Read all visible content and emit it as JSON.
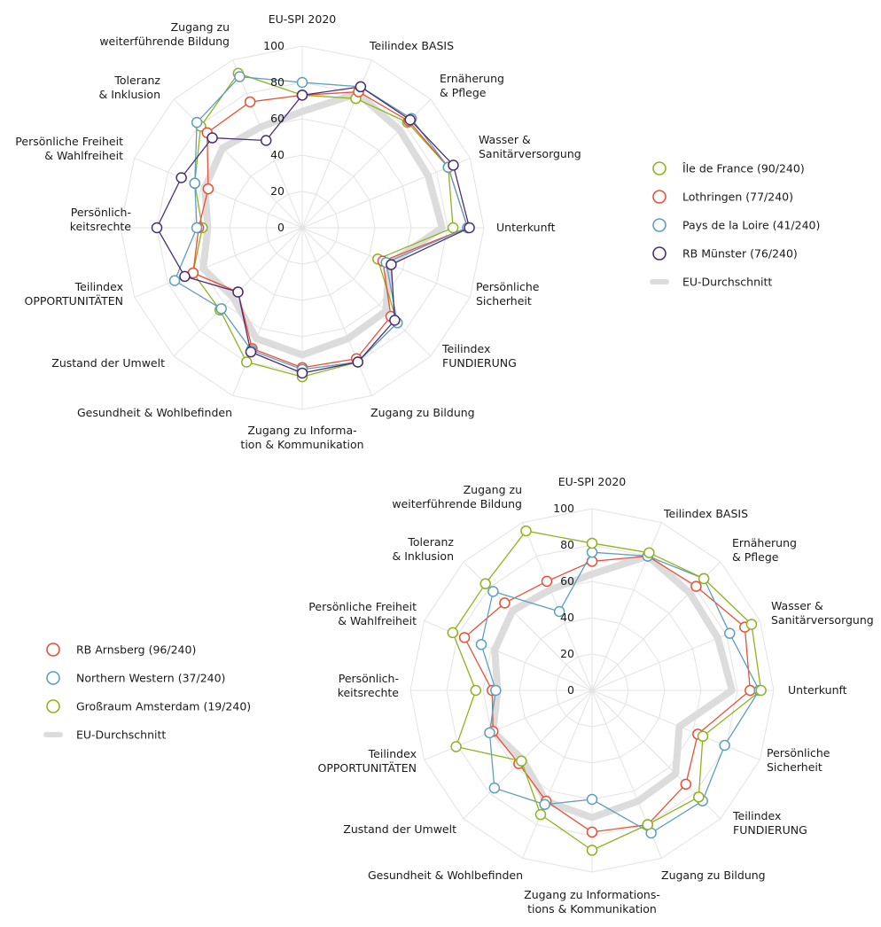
{
  "chart_data": [
    {
      "type": "radar",
      "title": "EU-SPI 2020",
      "rlim": [
        0,
        100
      ],
      "ticks": [
        "0",
        "20",
        "40",
        "60",
        "80",
        "100"
      ],
      "tick_values": [
        0,
        20,
        40,
        60,
        80,
        100
      ],
      "grid": true,
      "legend_position": "right",
      "axes": [
        "Teilindex BASIS",
        "Ernäherung & Pflege",
        "Wasser & Sanitärversorgung",
        "Unterkunft",
        "Persönliche Sicherheit",
        "Teilindex FUNDIERUNG",
        "Zugang zu Bildung",
        "Zugang zu Information & Kommunikation",
        "Gesundheit & Wohlbefinden",
        "Zustand der Umwelt",
        "Teilindex OPPORTUNITÄTEN",
        "Persönlichkeitsrechte",
        "Persönliche Freiheit & Wahlfreiheit",
        "Toleranz & Inklusion",
        "Zugang zu weiterführende Bildung",
        "EU-SPI 2020"
      ],
      "axis_labels": [
        [
          "Teilindex BASIS"
        ],
        [
          "Ernäherung",
          "& Pflege"
        ],
        [
          "Wasser &",
          "Sanitärversorgung"
        ],
        [
          "Unterkunft"
        ],
        [
          "Persönliche",
          "Sicherheit"
        ],
        [
          "Teilindex",
          "FUNDIERUNG"
        ],
        [
          "Zugang zu Bildung"
        ],
        [
          "Zugang zu Informa-",
          "tion & Kommunikation"
        ],
        [
          "Gesundheit & Wohlbefinden"
        ],
        [
          "Zustand der Umwelt"
        ],
        [
          "Teilindex",
          "OPPORTUNITÄTEN"
        ],
        [
          "Persönlich-",
          "keitsrechte"
        ],
        [
          "Persönliche Freiheit",
          "& Wahlfreiheit"
        ],
        [
          "Toleranz",
          "& Inklusion"
        ],
        [
          "Zugang zu",
          "weiterführende Bildung"
        ],
        [
          "EU-SPI 2020"
        ]
      ],
      "series": [
        {
          "name": "Île de France (90/240)",
          "color": "#8db41e",
          "values": [
            77,
            82,
            87,
            83,
            45,
            74,
            80,
            82,
            80,
            64,
            65,
            55,
            64,
            79,
            92,
            73
          ]
        },
        {
          "name": "Lothringen (77/240)",
          "color": "#e8503a",
          "values": [
            81,
            83,
            87,
            91,
            48,
            69,
            78,
            77,
            72,
            50,
            65,
            57,
            56,
            74,
            75,
            73
          ]
        },
        {
          "name": "Pays de la Loire (41/240)",
          "color": "#5e9fbd",
          "values": [
            84,
            85,
            87,
            91,
            50,
            74,
            80,
            78,
            73,
            63,
            76,
            58,
            64,
            82,
            90,
            80
          ]
        },
        {
          "name": "RB Münster (76/240)",
          "color": "#4a2e72",
          "values": [
            84,
            84,
            90,
            92,
            53,
            72,
            80,
            80,
            74,
            50,
            70,
            80,
            72,
            70,
            52,
            73
          ]
        },
        {
          "name": "EU-Durchschnitt",
          "color": "#dcdcdc",
          "values": [
            80,
            76,
            75,
            77,
            52,
            65,
            66,
            70,
            66,
            54,
            59,
            52,
            58,
            62,
            60,
            64
          ]
        }
      ]
    },
    {
      "type": "radar",
      "title": "EU-SPI 2020",
      "rlim": [
        0,
        100
      ],
      "ticks": [
        "0",
        "20",
        "40",
        "60",
        "80",
        "100"
      ],
      "tick_values": [
        0,
        20,
        40,
        60,
        80,
        100
      ],
      "grid": true,
      "legend_position": "left",
      "axes": [
        "Teilindex BASIS",
        "Ernäherung & Pflege",
        "Wasser & Sanitärversorgung",
        "Unterkunft",
        "Persönliche Sicherheit",
        "Teilindex FUNDIERUNG",
        "Zugang zu Bildung",
        "Zugang zu Informations & Kommunikation",
        "Gesundheit & Wohlbefinden",
        "Zustand der Umwelt",
        "Teilindex OPPORTUNITÄTEN",
        "Persönlichkeitsrechte",
        "Persönliche Freiheit & Wahlfreiheit",
        "Toleranz & Inklusion",
        "Zugang zu weiterführende Bildung",
        "EU-SPI 2020"
      ],
      "axis_labels": [
        [
          "Teilindex BASIS"
        ],
        [
          "Ernäherung",
          "& Pflege"
        ],
        [
          "Wasser &",
          "Sanitärversorgung"
        ],
        [
          "Unterkunft"
        ],
        [
          "Persönliche",
          "Sicherheit"
        ],
        [
          "Teilindex",
          "FUNDIERUNG"
        ],
        [
          "Zugang zu Bildung"
        ],
        [
          "Zugang zu Informations-",
          "tions & Kommunikation"
        ],
        [
          "Gesundheit & Wohlbefinden"
        ],
        [
          "Zustand der Umwelt"
        ],
        [
          "Teilindex",
          "OPPORTUNITÄTEN"
        ],
        [
          "Persönlich-",
          "keitsrechte"
        ],
        [
          "Persönliche Freiheit",
          "& Wahlfreiheit"
        ],
        [
          "Toleranz",
          "& Inklusion"
        ],
        [
          "Zugang zu",
          "weiterführende Bildung"
        ],
        [
          "EU-SPI 2020"
        ]
      ],
      "series": [
        {
          "name": "RB Arnsberg (96/240)",
          "color": "#e8503a",
          "values": [
            80,
            81,
            91,
            87,
            63,
            73,
            80,
            78,
            66,
            57,
            59,
            55,
            76,
            68,
            65,
            71
          ]
        },
        {
          "name": "Northern Western (37/240)",
          "color": "#5e9fbd",
          "values": [
            80,
            87,
            82,
            92,
            79,
            86,
            85,
            60,
            68,
            76,
            61,
            53,
            66,
            77,
            47,
            76
          ]
        },
        {
          "name": "Großraum Amsterdam (19/240)",
          "color": "#8db41e",
          "values": [
            82,
            87,
            95,
            93,
            66,
            83,
            80,
            88,
            74,
            55,
            81,
            64,
            83,
            83,
            95,
            81
          ]
        },
        {
          "name": "EU-Durchschnitt",
          "color": "#dcdcdc",
          "values": [
            80,
            76,
            75,
            77,
            52,
            65,
            66,
            70,
            66,
            54,
            59,
            52,
            58,
            62,
            60,
            64
          ]
        }
      ]
    }
  ]
}
